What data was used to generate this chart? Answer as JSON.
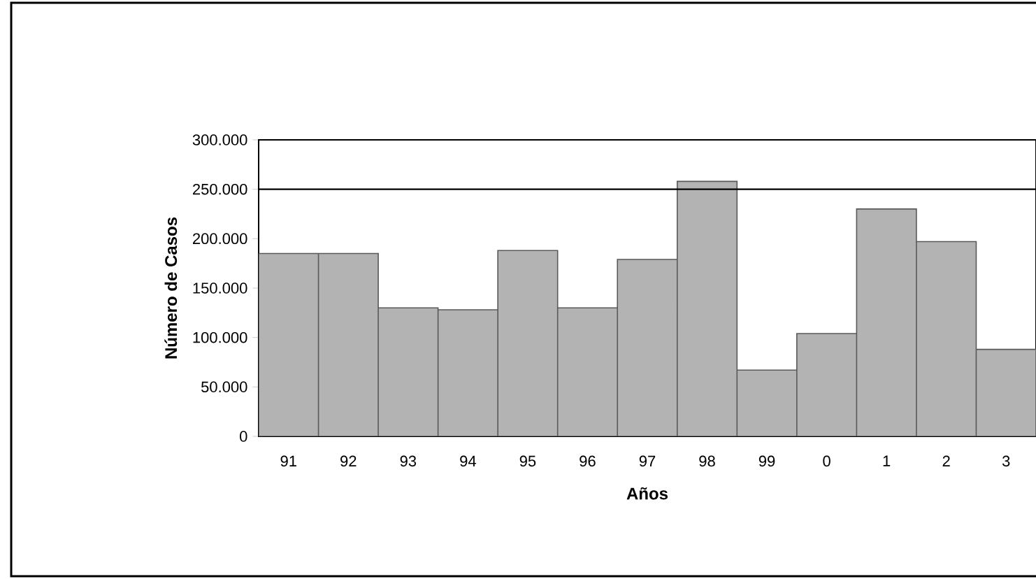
{
  "chart_data": {
    "type": "bar",
    "xlabel": "Años",
    "ylabel": "Número de Casos",
    "categories": [
      "91",
      "92",
      "93",
      "94",
      "95",
      "96",
      "97",
      "98",
      "99",
      "0",
      "1",
      "2",
      "3"
    ],
    "values": [
      185000,
      185000,
      130000,
      128000,
      188000,
      130000,
      179000,
      258000,
      67000,
      104000,
      230000,
      197000,
      88000
    ],
    "color": "#b3b3b3",
    "ylim": [
      0,
      300000
    ],
    "yticks": [
      0,
      {
        "value": 50000,
        "label": "50.000"
      },
      {
        "value": 100000,
        "label": "100.000"
      },
      {
        "value": 150000,
        "label": "150.000"
      },
      {
        "value": 200000,
        "label": "200.000"
      },
      {
        "value": 250000,
        "label": "250.000"
      },
      {
        "value": 300000,
        "label": "300.000"
      }
    ],
    "ref_lines": [
      {
        "axis": "y",
        "value": 250000,
        "color": "#000000"
      }
    ],
    "grid": false
  }
}
